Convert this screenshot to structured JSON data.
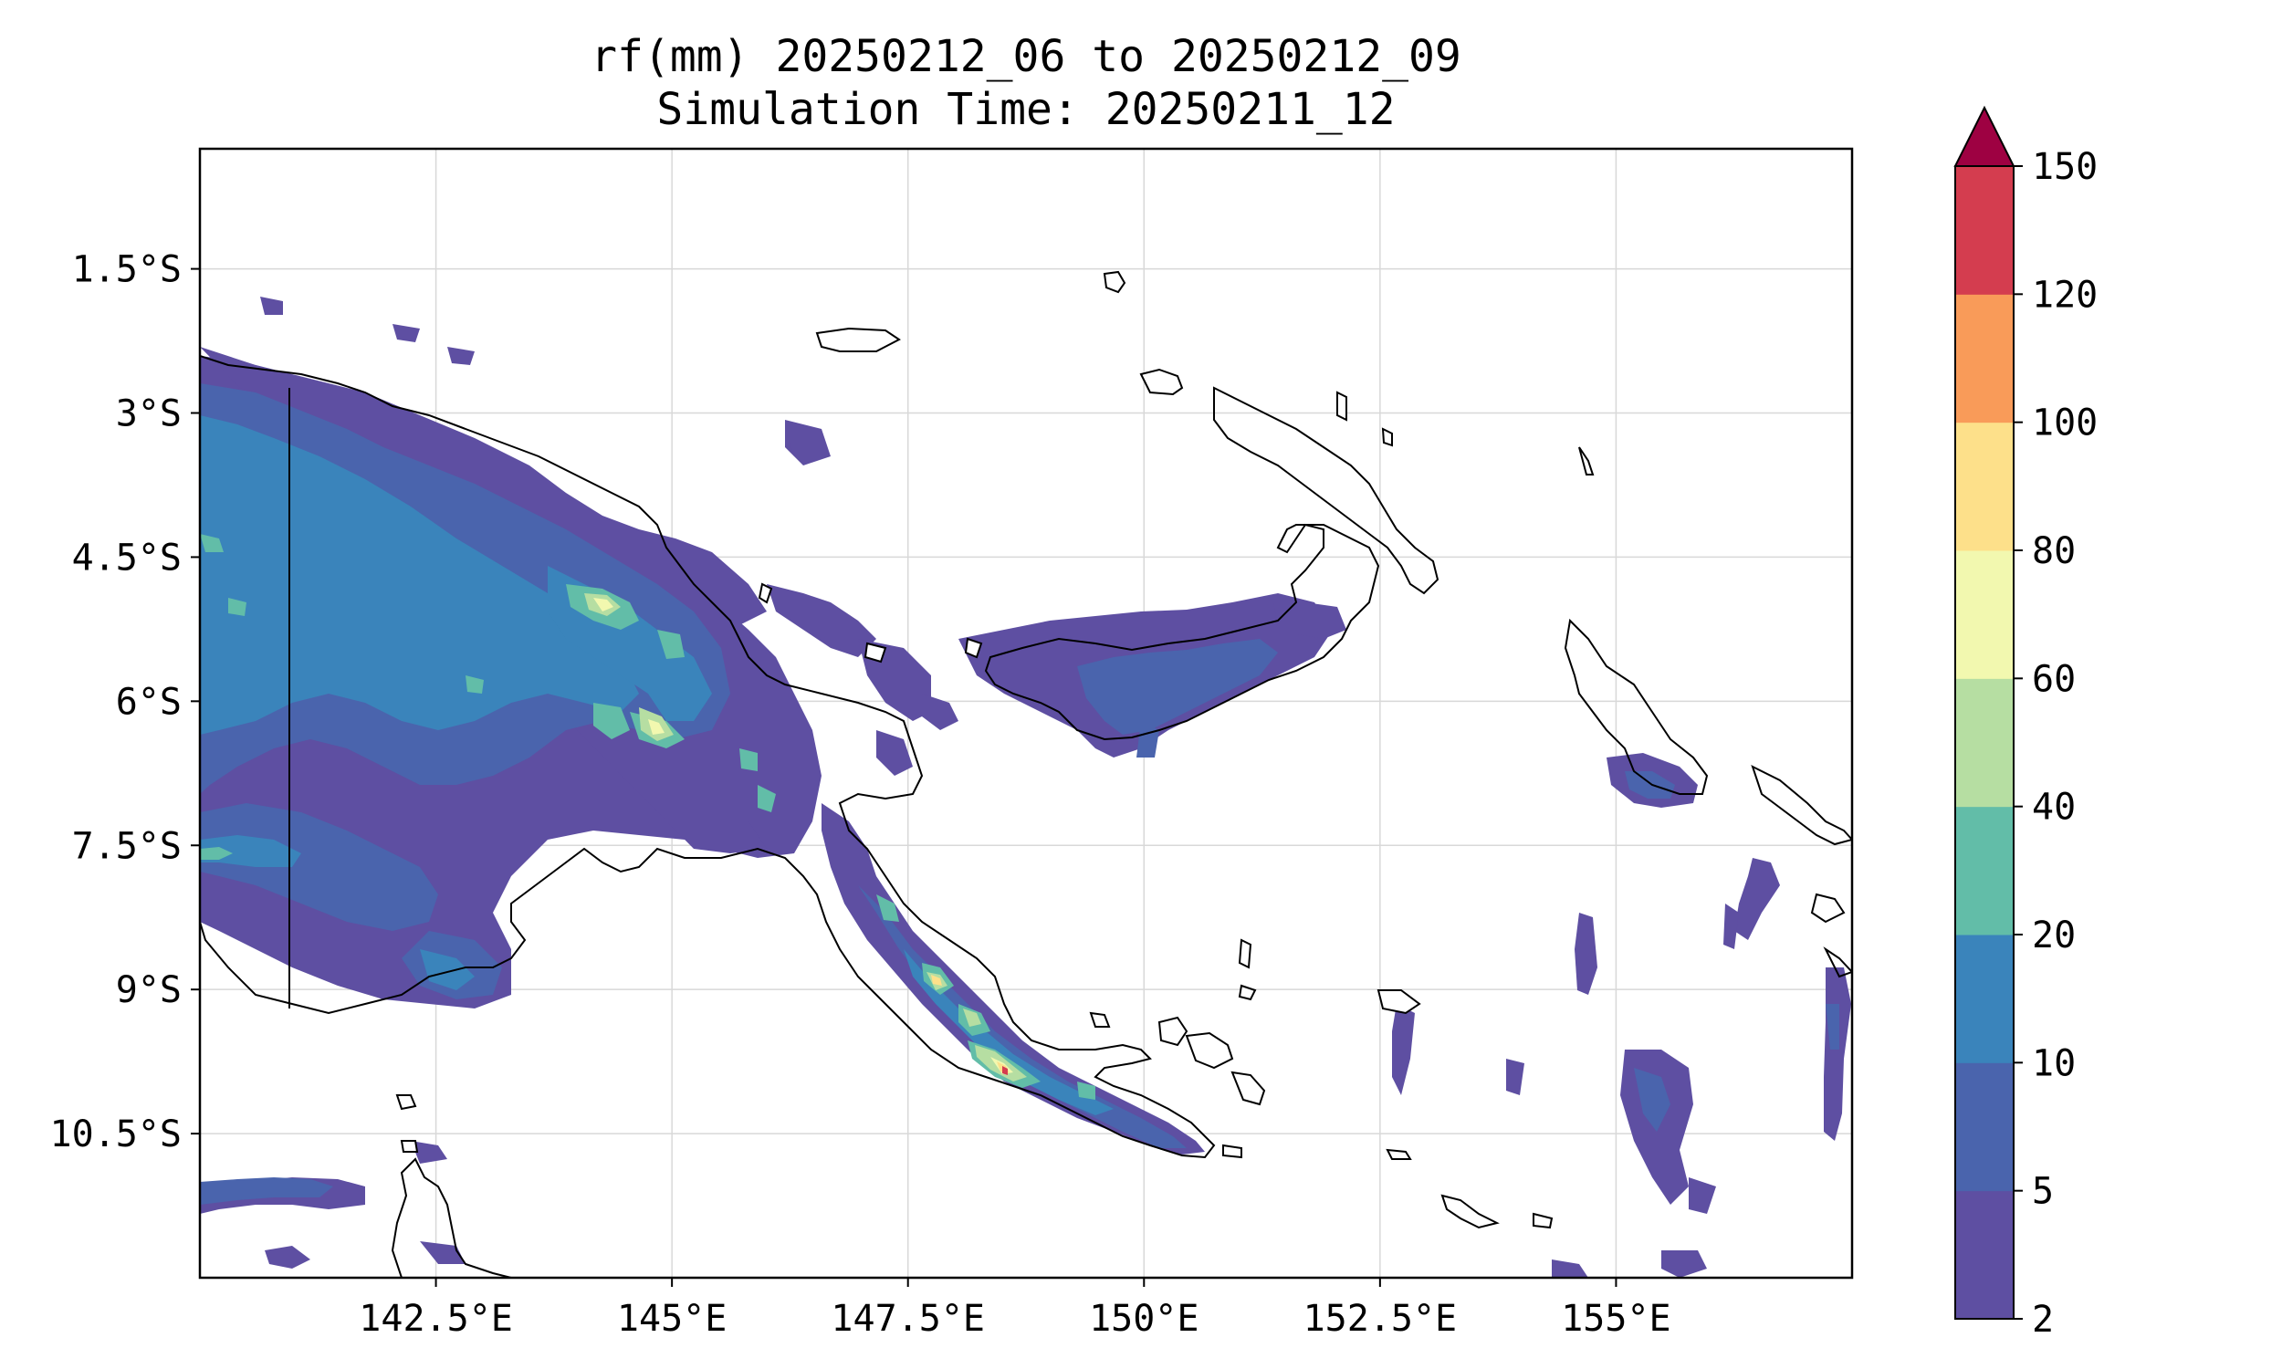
{
  "title": {
    "line1": "rf(mm) 20250212_06 to 20250212_09",
    "line2": "Simulation Time: 20250211_12"
  },
  "map": {
    "lon_range": [
      140.0,
      157.5
    ],
    "lat_range": [
      -12.0,
      -0.25
    ],
    "x_ticks": [
      {
        "value": 142.5,
        "label": "142.5°E"
      },
      {
        "value": 145.0,
        "label": "145°E"
      },
      {
        "value": 147.5,
        "label": "147.5°E"
      },
      {
        "value": 150.0,
        "label": "150°E"
      },
      {
        "value": 152.5,
        "label": "152.5°E"
      },
      {
        "value": 155.0,
        "label": "155°E"
      }
    ],
    "y_ticks": [
      {
        "value": -1.5,
        "label": "1.5°S"
      },
      {
        "value": -3.0,
        "label": "3°S"
      },
      {
        "value": -4.5,
        "label": "4.5°S"
      },
      {
        "value": -6.0,
        "label": "6°S"
      },
      {
        "value": -7.5,
        "label": "7.5°S"
      },
      {
        "value": -9.0,
        "label": "9°S"
      },
      {
        "value": -10.5,
        "label": "10.5°S"
      }
    ],
    "grid": true
  },
  "colorbar": {
    "levels": [
      2,
      5,
      10,
      20,
      40,
      60,
      80,
      100,
      120,
      150
    ],
    "labels": [
      "2",
      "5",
      "10",
      "20",
      "40",
      "60",
      "80",
      "100",
      "120",
      "150"
    ],
    "colors": [
      "#5e4fa2",
      "#4a64ad",
      "#3a84bb",
      "#62bda8",
      "#b6dea2",
      "#f2f8af",
      "#fde08a",
      "#f99b59",
      "#d43d4f",
      "#9e0142"
    ],
    "extend": "max"
  }
}
